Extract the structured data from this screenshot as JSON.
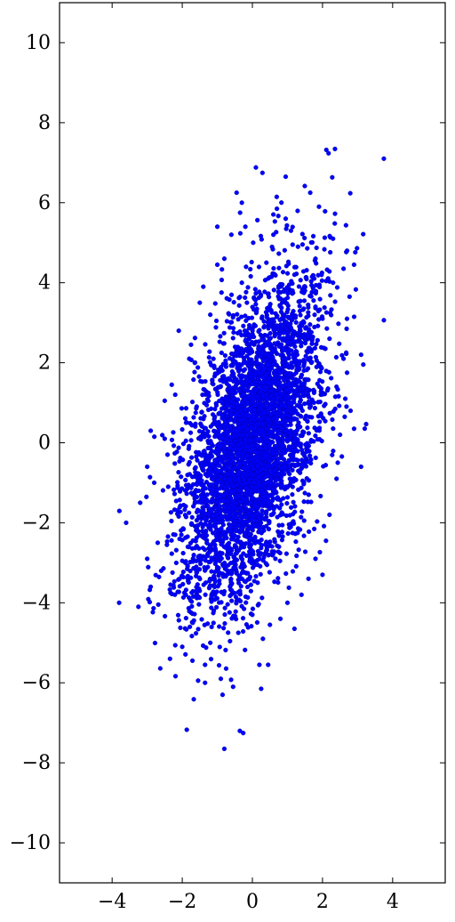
{
  "chart_data": {
    "type": "scatter",
    "title": "",
    "xlabel": "",
    "ylabel": "",
    "xlim": [
      -5.5,
      5.5
    ],
    "ylim": [
      -11,
      11
    ],
    "grid": false,
    "legend": "none",
    "marker_color": "#0000ff",
    "marker_edge_color": "#0000a0",
    "xticks": [
      -4,
      -2,
      0,
      2,
      4
    ],
    "xtick_labels": [
      "−4",
      "−2",
      "0",
      "2",
      "4"
    ],
    "yticks": [
      -10,
      -8,
      -6,
      -4,
      -2,
      0,
      2,
      4,
      6,
      8,
      10
    ],
    "ytick_labels": [
      "−10",
      "−8",
      "−6",
      "−4",
      "−2",
      "0",
      "2",
      "4",
      "6",
      "8",
      "10"
    ],
    "series": [
      {
        "points": [
          [
            3.75,
            7.1
          ],
          [
            0.1,
            6.88
          ],
          [
            0.95,
            6.65
          ],
          [
            -0.45,
            6.25
          ],
          [
            1.65,
            6.25
          ],
          [
            -0.3,
            6.0
          ],
          [
            1.9,
            5.9
          ],
          [
            0.7,
            5.85
          ],
          [
            -0.35,
            5.75
          ],
          [
            0.95,
            5.6
          ],
          [
            -1.0,
            5.4
          ],
          [
            1.1,
            5.3
          ],
          [
            2.3,
            5.1
          ],
          [
            -0.6,
            5.2
          ],
          [
            2.7,
            4.8
          ],
          [
            1.8,
            4.6
          ],
          [
            2.9,
            4.45
          ],
          [
            -1.0,
            4.45
          ],
          [
            0.4,
            4.5
          ],
          [
            2.6,
            4.35
          ],
          [
            2.3,
            4.0
          ],
          [
            -1.4,
            3.9
          ],
          [
            3.1,
            2.2
          ],
          [
            2.7,
            1.75
          ],
          [
            2.65,
            1.1
          ],
          [
            2.9,
            0.35
          ],
          [
            3.1,
            -0.6
          ],
          [
            -2.1,
            2.8
          ],
          [
            -1.75,
            2.45
          ],
          [
            -2.3,
            1.45
          ],
          [
            -2.5,
            1.05
          ],
          [
            -2.9,
            0.3
          ],
          [
            -3.0,
            -0.6
          ],
          [
            -3.2,
            -1.5
          ],
          [
            -3.6,
            -2.0
          ],
          [
            -3.8,
            -4.0
          ],
          [
            -3.25,
            -4.1
          ],
          [
            -2.9,
            -3.6
          ],
          [
            -3.0,
            -2.9
          ],
          [
            -2.6,
            -3.2
          ],
          [
            -2.35,
            -5.4
          ],
          [
            -2.0,
            -5.1
          ],
          [
            -1.35,
            -5.55
          ],
          [
            -1.35,
            -6.0
          ],
          [
            -0.85,
            -6.3
          ],
          [
            -0.55,
            -6.1
          ],
          [
            0.25,
            -6.15
          ],
          [
            0.45,
            -5.55
          ],
          [
            0.2,
            -5.55
          ],
          [
            -0.4,
            -4.75
          ],
          [
            0.5,
            -4.55
          ],
          [
            1.2,
            -4.65
          ],
          [
            2.0,
            -3.3
          ],
          [
            2.1,
            -2.45
          ],
          [
            -0.8,
            -7.65
          ],
          [
            -1.7,
            -4.5
          ],
          [
            -1.1,
            -4.2
          ],
          [
            0.0,
            -4.3
          ],
          [
            1.4,
            -3.8
          ],
          [
            -1.6,
            -3.1
          ],
          [
            1.8,
            -2.9
          ],
          [
            -2.2,
            -2.3
          ],
          [
            2.2,
            -1.8
          ],
          [
            -2.4,
            -1.1
          ],
          [
            2.4,
            -0.9
          ],
          [
            -2.5,
            0.1
          ],
          [
            2.5,
            0.2
          ],
          [
            -2.2,
            1.2
          ],
          [
            2.4,
            1.4
          ],
          [
            -1.8,
            2.1
          ],
          [
            2.2,
            2.6
          ],
          [
            -1.2,
            3.2
          ],
          [
            1.8,
            3.4
          ],
          [
            -0.3,
            4.0
          ],
          [
            1.2,
            4.2
          ],
          [
            -1.5,
            3.5
          ],
          [
            1.5,
            3.8
          ],
          [
            -0.8,
            4.6
          ],
          [
            0.6,
            5.2
          ],
          [
            -0.2,
            5.4
          ],
          [
            1.3,
            4.9
          ],
          [
            -1.9,
            -3.8
          ],
          [
            -1.2,
            -5.0
          ],
          [
            0.3,
            -4.9
          ],
          [
            0.8,
            -4.4
          ],
          [
            1.6,
            -3.4
          ],
          [
            -2.7,
            -2.5
          ],
          [
            -2.8,
            -1.0
          ],
          [
            2.8,
            0.8
          ],
          [
            2.6,
            2.1
          ],
          [
            2.0,
            3.1
          ],
          [
            -0.9,
            -5.9
          ],
          [
            1.0,
            -4.0
          ]
        ]
      }
    ]
  }
}
